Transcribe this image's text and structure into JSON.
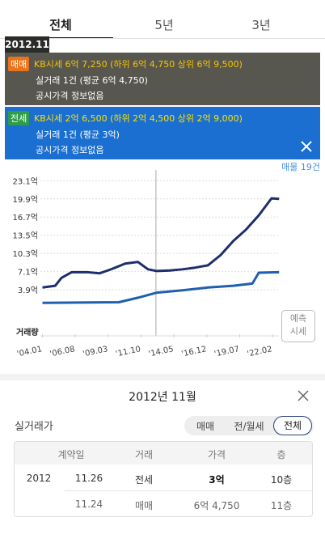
{
  "tabs": [
    "전체",
    "5년",
    "3년"
  ],
  "tooltip": {
    "date": "2012.11",
    "items": [
      {
        "badge": "매매",
        "kb": "KB시세 6억 7,250 (하위 6억 4,750 상위 6억 9,500)",
        "deal": "실거래 1건 (평균 6억 4,750)",
        "official": "공시가격 정보없음"
      },
      {
        "badge": "전세",
        "kb": "KB시세 2억 6,500 (하위 2억 4,500 상위 2억 9,000)",
        "deal": "실거래 1건 (평균 3억)",
        "official": "공시가격 정보없음"
      }
    ]
  },
  "listing_count": "매물 19건",
  "chart_data": {
    "type": "line",
    "volume_label": "거래량",
    "xlim": [
      2001.3,
      2022.9
    ],
    "ylim": [
      -3.5,
      25.0
    ],
    "highlight_x": 2012.92,
    "xticks": [
      {
        "value": 2004.0,
        "label": "'04.01"
      },
      {
        "value": 2006.58,
        "label": "'06.08"
      },
      {
        "value": 2009.17,
        "label": "'09.03"
      },
      {
        "value": 2011.75,
        "label": "'11.10"
      },
      {
        "value": 2014.33,
        "label": "'14.05"
      },
      {
        "value": 2016.92,
        "label": "'16.12"
      },
      {
        "value": 2019.5,
        "label": "'19.07"
      },
      {
        "value": 2022.08,
        "label": "'22.02"
      }
    ],
    "yticks": [
      {
        "value": 3.9,
        "label": "3.9억"
      },
      {
        "value": 7.1,
        "label": "7.1억"
      },
      {
        "value": 10.3,
        "label": "10.3억"
      },
      {
        "value": 13.5,
        "label": "13.5억"
      },
      {
        "value": 16.7,
        "label": "16.7억"
      },
      {
        "value": 19.9,
        "label": "19.9억"
      },
      {
        "value": 23.1,
        "label": "23.1억"
      }
    ],
    "grid": true,
    "series": [
      {
        "name": "매매",
        "color": "#1d2f6b",
        "x": [
          2004.0,
          2005.0,
          2005.5,
          2006.3,
          2007.5,
          2008.5,
          2009.5,
          2010.5,
          2011.5,
          2012.3,
          2013.0,
          2014.0,
          2015.0,
          2016.0,
          2017.0,
          2018.0,
          2019.0,
          2020.0,
          2021.0,
          2022.0,
          2022.6
        ],
        "values": [
          4.3,
          4.6,
          6.0,
          7.0,
          7.0,
          6.8,
          7.6,
          8.5,
          8.8,
          7.5,
          7.2,
          7.3,
          7.5,
          7.8,
          8.2,
          10.0,
          12.5,
          14.5,
          17.0,
          20.0,
          19.9
        ]
      },
      {
        "name": "전세",
        "color": "#1f5fb0",
        "x": [
          2004.0,
          2010.0,
          2011.5,
          2013.0,
          2015.0,
          2017.0,
          2019.0,
          2020.5,
          2021.0,
          2022.6
        ],
        "values": [
          1.6,
          1.7,
          2.5,
          3.4,
          3.8,
          4.3,
          4.6,
          5.0,
          6.9,
          7.0
        ]
      }
    ]
  },
  "forecast_button": [
    "예측",
    "시세"
  ],
  "detail": {
    "title": "2012년 11월",
    "section": "실거래가",
    "filters": [
      "매매",
      "전/월세",
      "전체"
    ],
    "table": {
      "header": [
        "계약일",
        "거래",
        "가격",
        "층"
      ],
      "rows": [
        {
          "year": "2012",
          "date": "11.26",
          "type": "전세",
          "price": "3억",
          "floor": "10층"
        },
        {
          "date": "11.24",
          "type": "매매",
          "price": "6억 4,750",
          "floor": "11층"
        }
      ]
    }
  }
}
